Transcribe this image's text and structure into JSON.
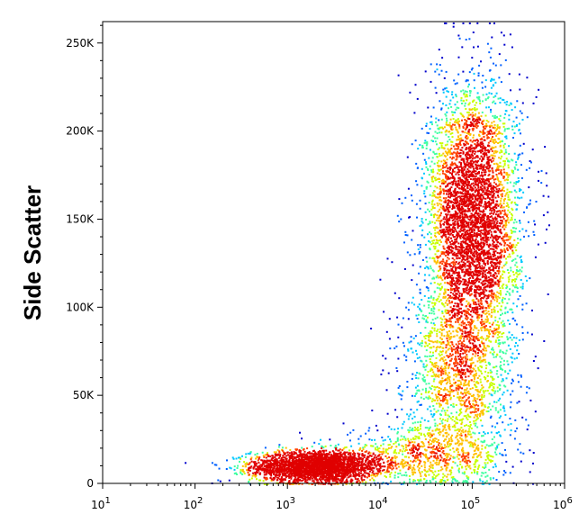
{
  "chart_data": {
    "type": "scatter",
    "style": "flow cytometry density dot plot",
    "ylabel": "Side Scatter",
    "xlabel": "",
    "xscale": "log",
    "xlim": [
      10,
      1000000
    ],
    "ylim": [
      0,
      262144
    ],
    "x_ticks": [
      {
        "value": 10,
        "base": "10",
        "exp": "1"
      },
      {
        "value": 100,
        "base": "10",
        "exp": "2"
      },
      {
        "value": 1000,
        "base": "10",
        "exp": "3"
      },
      {
        "value": 10000,
        "base": "10",
        "exp": "4"
      },
      {
        "value": 100000,
        "base": "10",
        "exp": "5"
      },
      {
        "value": 1000000,
        "base": "10",
        "exp": "6"
      }
    ],
    "y_ticks": [
      {
        "value": 0,
        "label": "0"
      },
      {
        "value": 50000,
        "label": "50K"
      },
      {
        "value": 100000,
        "label": "100K"
      },
      {
        "value": 150000,
        "label": "150K"
      },
      {
        "value": 200000,
        "label": "200K"
      },
      {
        "value": 250000,
        "label": "250K"
      }
    ],
    "colormap": [
      "#0000cc",
      "#0060ff",
      "#00c8ff",
      "#40ffa0",
      "#c8ff00",
      "#ffc000",
      "#ff4000",
      "#e00000"
    ],
    "populations": [
      {
        "x_center": 2000,
        "y_center": 10000,
        "x_spread_decades": 0.35,
        "y_spread": 4500,
        "count": 2800
      },
      {
        "x_center": 30000,
        "y_center": 16000,
        "x_spread_decades": 0.45,
        "y_spread": 8000,
        "count": 700
      },
      {
        "x_center": 100000,
        "y_center": 150000,
        "x_spread_decades": 0.25,
        "y_spread": 38000,
        "count": 4500
      },
      {
        "x_center": 70000,
        "y_center": 60000,
        "x_spread_decades": 0.3,
        "y_spread": 28000,
        "count": 1500
      }
    ],
    "grid": false,
    "legend": "none"
  }
}
